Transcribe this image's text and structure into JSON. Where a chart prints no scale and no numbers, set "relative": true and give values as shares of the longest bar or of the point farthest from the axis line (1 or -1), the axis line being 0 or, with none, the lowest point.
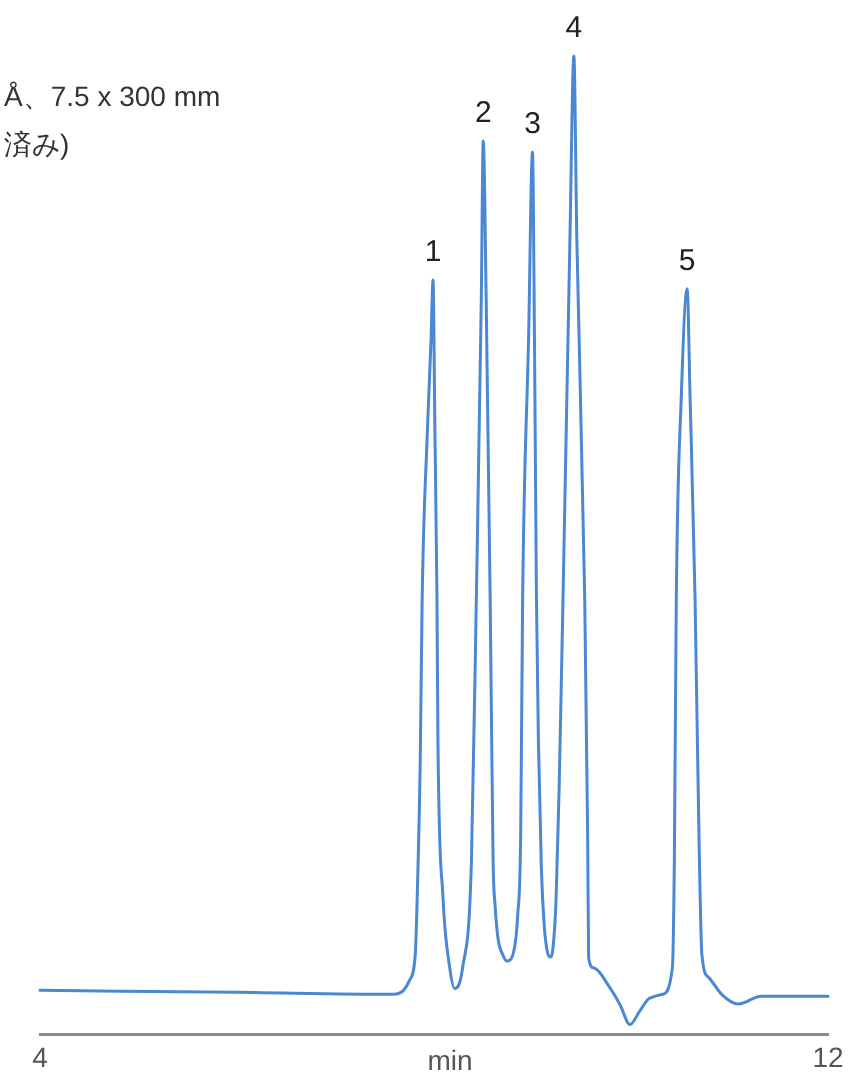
{
  "chart_data": {
    "type": "line",
    "relative": true,
    "annotations": [
      "Å、7.5 x 300 mm",
      "済み)",
      {
        "text": "1",
        "x": 7.99,
        "y": 0.771
      },
      {
        "text": "2",
        "x": 8.5,
        "y": 0.913
      },
      {
        "text": "3",
        "x": 9.0,
        "y": 0.902
      },
      {
        "text": "4",
        "x": 9.42,
        "y": 1.0
      },
      {
        "text": "5",
        "x": 10.57,
        "y": 0.762
      }
    ],
    "xlabel": "min",
    "xlim": [
      4,
      12
    ],
    "xticks": [
      4,
      12
    ],
    "x": [
      4.0,
      6.0,
      7.59,
      7.69,
      7.75,
      7.81,
      7.83,
      7.86,
      7.88,
      7.93,
      7.97,
      7.99,
      8.01,
      8.03,
      8.04,
      8.09,
      8.16,
      8.21,
      8.29,
      8.38,
      8.43,
      8.48,
      8.5,
      8.53,
      8.57,
      8.6,
      8.62,
      8.65,
      8.7,
      8.74,
      8.81,
      8.85,
      8.88,
      8.9,
      8.96,
      9.0,
      9.02,
      9.04,
      9.06,
      9.09,
      9.12,
      9.15,
      9.18,
      9.21,
      9.24,
      9.27,
      9.31,
      9.38,
      9.42,
      9.45,
      9.53,
      9.56,
      9.57,
      9.62,
      9.79,
      9.89,
      9.99,
      10.09,
      10.19,
      10.32,
      10.42,
      10.44,
      10.46,
      10.51,
      10.57,
      10.6,
      10.65,
      10.69,
      10.72,
      10.79,
      10.92,
      11.09,
      11.32,
      12.0
    ],
    "series": [
      {
        "color": "#4a88d4",
        "values": [
          0.045,
          0.043,
          0.041,
          0.045,
          0.055,
          0.082,
          0.142,
          0.278,
          0.447,
          0.61,
          0.71,
          0.771,
          0.61,
          0.447,
          0.3,
          0.142,
          0.068,
          0.047,
          0.068,
          0.177,
          0.447,
          0.75,
          0.913,
          0.75,
          0.447,
          0.177,
          0.132,
          0.098,
          0.081,
          0.075,
          0.085,
          0.122,
          0.203,
          0.447,
          0.711,
          0.902,
          0.711,
          0.447,
          0.3,
          0.17,
          0.11,
          0.085,
          0.079,
          0.09,
          0.14,
          0.25,
          0.447,
          0.813,
          1.0,
          0.813,
          0.447,
          0.203,
          0.078,
          0.068,
          0.047,
          0.03,
          0.01,
          0.024,
          0.037,
          0.041,
          0.068,
          0.177,
          0.447,
          0.65,
          0.762,
          0.65,
          0.447,
          0.203,
          0.081,
          0.058,
          0.041,
          0.031,
          0.039,
          0.039
        ]
      }
    ]
  }
}
